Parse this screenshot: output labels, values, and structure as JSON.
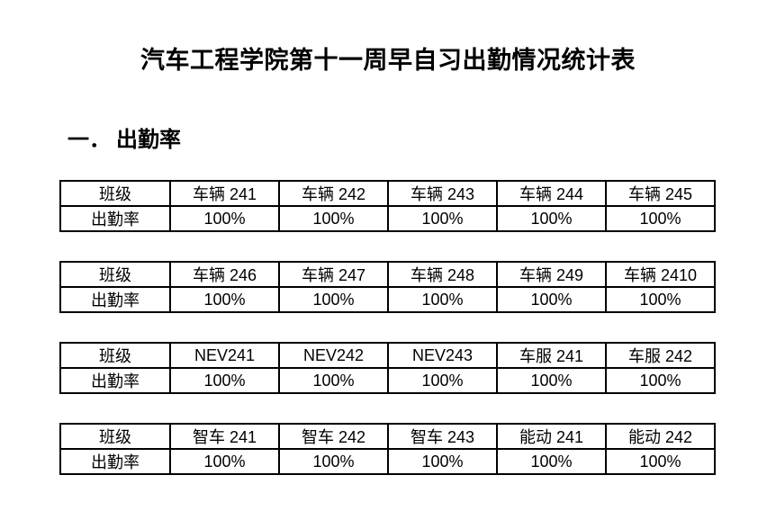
{
  "page": {
    "title": "汽车工程学院第十一周早自习出勤情况统计表",
    "section": {
      "number": "一．",
      "label": "出勤率"
    },
    "colors": {
      "background": "#ffffff",
      "text": "#000000",
      "table_border": "#000000"
    }
  },
  "tables": [
    {
      "rows": [
        [
          "班级",
          "车辆 241",
          "车辆 242",
          "车辆 243",
          "车辆 244",
          "车辆 245"
        ],
        [
          "出勤率",
          "100%",
          "100%",
          "100%",
          "100%",
          "100%"
        ]
      ]
    },
    {
      "rows": [
        [
          "班级",
          "车辆 246",
          "车辆 247",
          "车辆 248",
          "车辆 249",
          "车辆 2410"
        ],
        [
          "出勤率",
          "100%",
          "100%",
          "100%",
          "100%",
          "100%"
        ]
      ]
    },
    {
      "rows": [
        [
          "班级",
          "NEV241",
          "NEV242",
          "NEV243",
          "车服 241",
          "车服 242"
        ],
        [
          "出勤率",
          "100%",
          "100%",
          "100%",
          "100%",
          "100%"
        ]
      ]
    },
    {
      "rows": [
        [
          "班级",
          "智车 241",
          "智车 242",
          "智车 243",
          "能动 241",
          "能动 242"
        ],
        [
          "出勤率",
          "100%",
          "100%",
          "100%",
          "100%",
          "100%"
        ]
      ]
    }
  ]
}
